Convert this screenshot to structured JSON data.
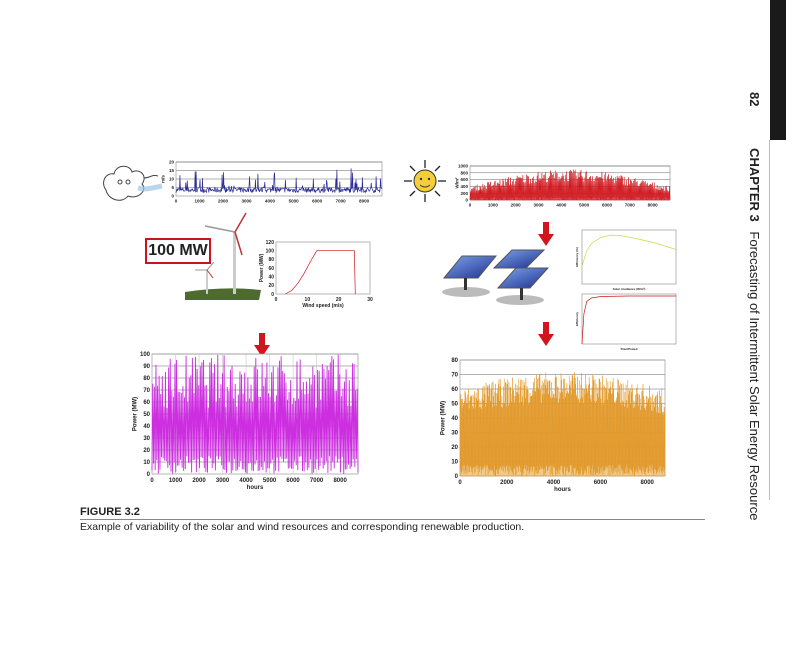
{
  "page": {
    "page_number": "82",
    "chapter_label": "CHAPTER 3",
    "chapter_title": "Forecasting of Intermittent Solar Energy Resource"
  },
  "figure": {
    "label": "FIGURE 3.2",
    "caption": "Example of variability of the solar and wind resources and corresponding renewable production.",
    "capacity_label": "100 MW"
  },
  "colors": {
    "wind_speed": "#2b2b96",
    "irradiance": "#d0161c",
    "power_curve": "#d0161c",
    "efficiency1": "#c8d84a",
    "efficiency2": "#d0161c",
    "wind_power": "#cc2ee0",
    "solar_power": "#e29a2c",
    "arrow": "#d0161c"
  },
  "chart_data": [
    {
      "id": "wind-speed",
      "type": "line",
      "ylabel": "m/s",
      "xlabel": "",
      "xlim": [
        0,
        8760
      ],
      "ylim": [
        0,
        20
      ],
      "xticks": [
        0,
        1000,
        2000,
        3000,
        4000,
        5000,
        6000,
        7000,
        8000
      ],
      "yticks": [
        0,
        5,
        10,
        15,
        20
      ],
      "grid": true,
      "envelope_mean": 4,
      "peak": 17
    },
    {
      "id": "irradiance",
      "type": "area",
      "ylabel": "W/m²",
      "xlabel": "",
      "xlim": [
        0,
        8760
      ],
      "ylim": [
        0,
        1000
      ],
      "xticks": [
        0,
        1000,
        2000,
        3000,
        4000,
        5000,
        6000,
        7000,
        8000
      ],
      "yticks": [
        0,
        200,
        400,
        600,
        800,
        1000
      ],
      "grid": true,
      "seasonal_peak": [
        400,
        900
      ]
    },
    {
      "id": "power-curve",
      "type": "line",
      "ylabel": "Power (MW)",
      "xlabel": "Wind speed (m/s)",
      "xlim": [
        0,
        30
      ],
      "ylim": [
        0,
        120
      ],
      "xticks": [
        0,
        10,
        20,
        30
      ],
      "yticks": [
        0,
        20,
        40,
        60,
        80,
        100,
        120
      ],
      "grid": false,
      "points": [
        [
          3,
          0
        ],
        [
          5,
          8
        ],
        [
          7,
          25
        ],
        [
          9,
          48
        ],
        [
          11,
          75
        ],
        [
          13,
          100
        ],
        [
          25,
          100
        ],
        [
          25.3,
          0
        ]
      ]
    },
    {
      "id": "efficiency-irradiance",
      "type": "line",
      "ylabel": "Efficiency (%)",
      "xlabel": "Solar irradiance (W/m²)",
      "xlim": [
        0,
        1000
      ],
      "ylim": [
        0,
        18
      ],
      "xticks": [],
      "yticks": [],
      "grid": false,
      "points": [
        [
          0,
          6
        ],
        [
          50,
          11
        ],
        [
          100,
          13.5
        ],
        [
          200,
          15.5
        ],
        [
          300,
          16.3
        ],
        [
          400,
          16.2
        ],
        [
          600,
          15
        ],
        [
          800,
          13.5
        ],
        [
          1000,
          11.5
        ]
      ]
    },
    {
      "id": "efficiency-load",
      "type": "line",
      "ylabel": "Efficiency",
      "xlabel": "Pout/Prated",
      "xlim": [
        0,
        1
      ],
      "ylim": [
        0,
        1
      ],
      "xticks": [],
      "yticks": [],
      "grid": false,
      "points": [
        [
          0,
          0
        ],
        [
          0.02,
          0.6
        ],
        [
          0.05,
          0.85
        ],
        [
          0.1,
          0.92
        ],
        [
          0.2,
          0.95
        ],
        [
          0.5,
          0.96
        ],
        [
          1,
          0.96
        ]
      ]
    },
    {
      "id": "wind-power",
      "type": "line",
      "ylabel": "Power (MW)",
      "xlabel": "hours",
      "xlim": [
        0,
        8760
      ],
      "ylim": [
        0,
        100
      ],
      "xticks": [
        0,
        1000,
        2000,
        3000,
        4000,
        5000,
        6000,
        7000,
        8000
      ],
      "yticks": [
        0,
        10,
        20,
        30,
        40,
        50,
        60,
        70,
        80,
        90,
        100
      ],
      "grid": true
    },
    {
      "id": "solar-power",
      "type": "area",
      "ylabel": "Power (MW)",
      "xlabel": "hours",
      "xlim": [
        0,
        8760
      ],
      "ylim": [
        0,
        80
      ],
      "xticks": [
        0,
        2000,
        4000,
        6000,
        8000
      ],
      "yticks": [
        0,
        10,
        20,
        30,
        40,
        50,
        60,
        70,
        80
      ],
      "grid": true,
      "seasonal_peak": [
        60,
        72
      ]
    }
  ]
}
